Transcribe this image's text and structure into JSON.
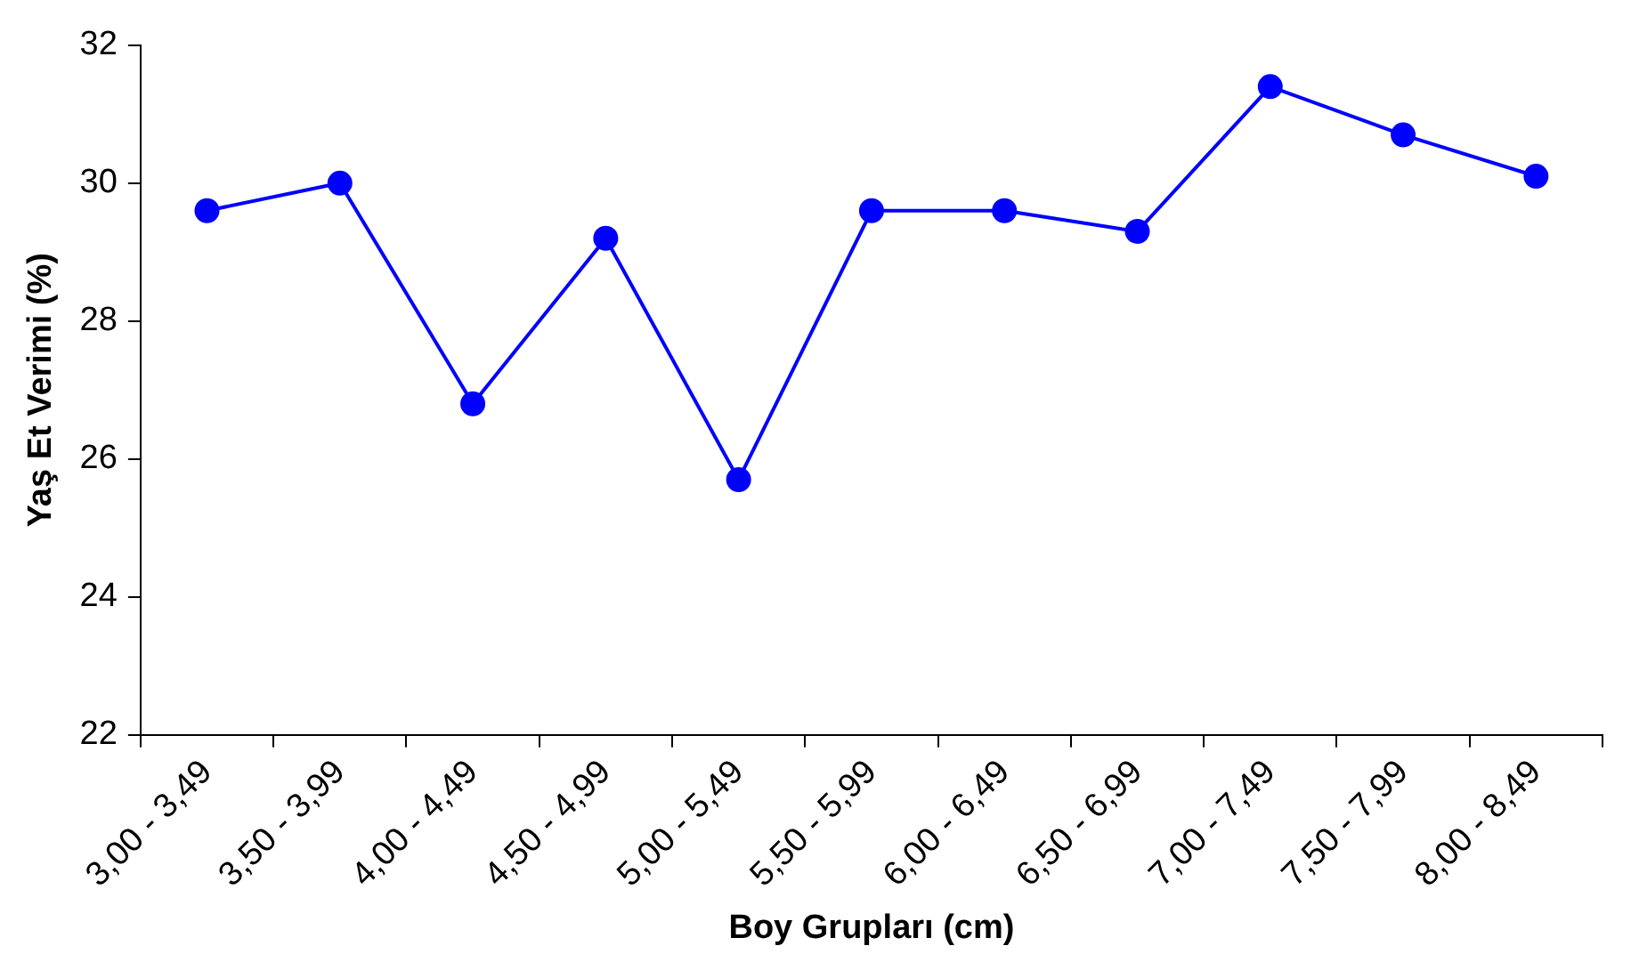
{
  "chart_data": {
    "type": "line",
    "xlabel": "Boy Grupları (cm)",
    "ylabel": "Yaş Et Verimi (%)",
    "categories": [
      "3,00 - 3,49",
      "3,50 - 3,99",
      "4,00 - 4,49",
      "4,50 - 4,99",
      "5,00 - 5,49",
      "5,50 - 5,99",
      "6,00 - 6,49",
      "6,50 - 6,99",
      "7,00 - 7,49",
      "7,50 - 7,99",
      "8,00 - 8,49"
    ],
    "series": [
      {
        "color": "#0000ff",
        "values": [
          29.6,
          30.0,
          26.8,
          29.2,
          25.7,
          29.6,
          29.6,
          29.3,
          31.4,
          30.7,
          30.1
        ]
      }
    ],
    "ylim": [
      22,
      32
    ],
    "yticks": [
      22,
      24,
      26,
      28,
      30,
      32
    ],
    "grid": false,
    "legend": false,
    "marker": "circle",
    "line_style": "solid"
  }
}
